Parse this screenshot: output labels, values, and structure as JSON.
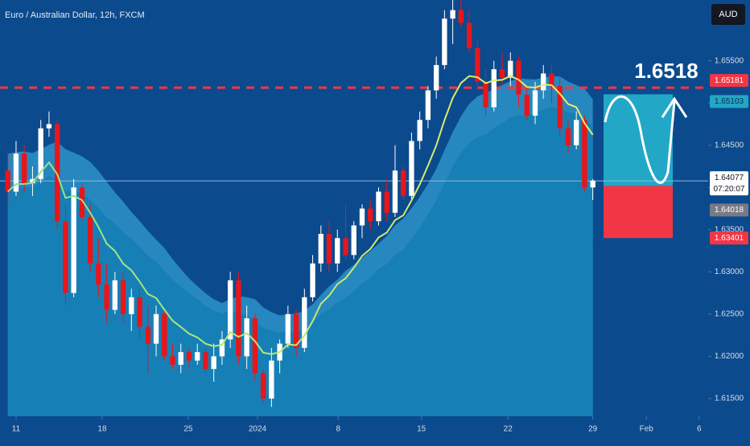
{
  "chart_data": {
    "type": "candlestick",
    "title": "Euro / Australian Dollar, 12h, FXCM",
    "currency": "AUD",
    "annotation": "1.6518",
    "countdown": "07:20:07",
    "up_color": "#ffffff",
    "down_color": "#e8151b",
    "xlim": [
      -0.95,
      85
    ],
    "ylim": [
      1.6129,
      1.6622
    ],
    "yticks": [
      {
        "value": 1.615,
        "label": "1.61500"
      },
      {
        "value": 1.62,
        "label": "1.62000"
      },
      {
        "value": 1.625,
        "label": "1.62500"
      },
      {
        "value": 1.63,
        "label": "1.63000"
      },
      {
        "value": 1.635,
        "label": "1.63500"
      },
      {
        "value": 1.64,
        "label": "1.64000"
      },
      {
        "value": 1.645,
        "label": "1.64500"
      },
      {
        "value": 1.65,
        "label": "1.65000"
      },
      {
        "value": 1.655,
        "label": "1.65500"
      }
    ],
    "xticks": [
      {
        "value": 1,
        "label": "11"
      },
      {
        "value": 11.45,
        "label": "18"
      },
      {
        "value": 21.9,
        "label": "25"
      },
      {
        "value": 30.3,
        "label": "2024"
      },
      {
        "value": 40.1,
        "label": "8"
      },
      {
        "value": 50.2,
        "label": "15"
      },
      {
        "value": 60.7,
        "label": "22"
      },
      {
        "value": 71,
        "label": "29"
      },
      {
        "value": 77.5,
        "label": "Feb"
      },
      {
        "value": 83.9,
        "label": "6"
      }
    ],
    "open": [
      1.642,
      1.6395,
      1.644,
      1.6405,
      1.641,
      1.647,
      1.6475,
      1.636,
      1.6275,
      1.64,
      1.6365,
      1.631,
      1.6285,
      1.6255,
      1.629,
      1.625,
      1.627,
      1.6235,
      1.6215,
      1.625,
      1.62,
      1.619,
      1.6205,
      1.6195,
      1.6205,
      1.6185,
      1.62,
      1.622,
      1.629,
      1.62,
      1.6245,
      1.618,
      1.615,
      1.6195,
      1.6215,
      1.625,
      1.621,
      1.627,
      1.631,
      1.6345,
      1.631,
      1.634,
      1.632,
      1.6355,
      1.6375,
      1.636,
      1.6395,
      1.637,
      1.642,
      1.639,
      1.6455,
      1.648,
      1.6515,
      1.6545,
      1.66,
      1.661,
      1.6595,
      1.6565,
      1.6525,
      1.6495,
      1.654,
      1.653,
      1.655,
      1.651,
      1.6485,
      1.6515,
      1.6535,
      1.652,
      1.647,
      1.645,
      1.648,
      1.64
    ],
    "high": [
      1.644,
      1.6455,
      1.645,
      1.6425,
      1.648,
      1.649,
      1.648,
      1.638,
      1.641,
      1.6405,
      1.638,
      1.634,
      1.631,
      1.63,
      1.63,
      1.628,
      1.628,
      1.626,
      1.626,
      1.6255,
      1.6215,
      1.6215,
      1.621,
      1.6215,
      1.621,
      1.6215,
      1.623,
      1.63,
      1.63,
      1.626,
      1.625,
      1.6185,
      1.621,
      1.622,
      1.626,
      1.6255,
      1.628,
      1.632,
      1.6355,
      1.636,
      1.635,
      1.638,
      1.636,
      1.638,
      1.6385,
      1.64,
      1.641,
      1.645,
      1.6425,
      1.6465,
      1.649,
      1.652,
      1.6555,
      1.661,
      1.6625,
      1.6625,
      1.661,
      1.6575,
      1.654,
      1.655,
      1.656,
      1.656,
      1.6555,
      1.652,
      1.6525,
      1.6545,
      1.6545,
      1.653,
      1.648,
      1.649,
      1.6485,
      1.641
    ],
    "low": [
      1.638,
      1.639,
      1.6395,
      1.639,
      1.6405,
      1.646,
      1.635,
      1.626,
      1.627,
      1.636,
      1.63,
      1.627,
      1.624,
      1.625,
      1.624,
      1.623,
      1.622,
      1.618,
      1.62,
      1.6195,
      1.6185,
      1.618,
      1.6185,
      1.619,
      1.618,
      1.617,
      1.619,
      1.621,
      1.619,
      1.6185,
      1.617,
      1.6145,
      1.614,
      1.618,
      1.621,
      1.62,
      1.6205,
      1.6265,
      1.63,
      1.63,
      1.63,
      1.6315,
      1.6315,
      1.634,
      1.635,
      1.6355,
      1.636,
      1.6365,
      1.6385,
      1.6385,
      1.6445,
      1.647,
      1.6505,
      1.654,
      1.657,
      1.659,
      1.656,
      1.6515,
      1.6485,
      1.649,
      1.652,
      1.652,
      1.6495,
      1.648,
      1.6475,
      1.6505,
      1.65,
      1.646,
      1.644,
      1.6445,
      1.6395,
      1.6385
    ],
    "close": [
      1.6395,
      1.644,
      1.6405,
      1.641,
      1.647,
      1.6475,
      1.636,
      1.6275,
      1.64,
      1.6365,
      1.631,
      1.6285,
      1.6255,
      1.629,
      1.625,
      1.627,
      1.6235,
      1.6215,
      1.625,
      1.62,
      1.619,
      1.6205,
      1.6195,
      1.6205,
      1.6185,
      1.62,
      1.622,
      1.629,
      1.62,
      1.6245,
      1.618,
      1.615,
      1.6195,
      1.6215,
      1.625,
      1.621,
      1.627,
      1.631,
      1.6345,
      1.631,
      1.634,
      1.632,
      1.6355,
      1.6375,
      1.636,
      1.6395,
      1.637,
      1.642,
      1.639,
      1.6455,
      1.648,
      1.6515,
      1.6545,
      1.66,
      1.661,
      1.6595,
      1.6565,
      1.6525,
      1.6495,
      1.654,
      1.653,
      1.655,
      1.651,
      1.6485,
      1.6515,
      1.6535,
      1.652,
      1.647,
      1.645,
      1.648,
      1.64,
      1.6408
    ],
    "resistance": {
      "value": 1.65181,
      "label": "1.65181",
      "color": "#f23645"
    },
    "current": {
      "value": 1.64077,
      "label": "1.64077"
    },
    "position": {
      "target": {
        "value": 1.65103,
        "label": "1.65103",
        "color": "#22a7c6"
      },
      "entry": {
        "value": 1.64018,
        "label": "1.64018",
        "color": "#787b86"
      },
      "stop": {
        "value": 1.63401,
        "label": "1.63401",
        "color": "#f23645"
      }
    }
  }
}
